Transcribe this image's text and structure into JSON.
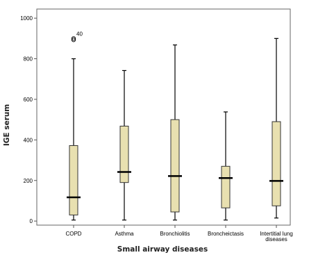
{
  "chart_data": {
    "type": "box",
    "xlabel": "Small airway diseases",
    "ylabel": "IGE serum",
    "ylim": [
      -20,
      1045
    ],
    "yticks": [
      0,
      200,
      400,
      600,
      800,
      1000
    ],
    "grid": false,
    "box_fill": "#e8e0b0",
    "categories": [
      {
        "label": [
          "COPD"
        ],
        "min": 5,
        "q1": 30,
        "median": 117,
        "q3": 372,
        "max": 800
      },
      {
        "label": [
          "Asthma"
        ],
        "min": 5,
        "q1": 190,
        "median": 242,
        "q3": 468,
        "max": 742
      },
      {
        "label": [
          "Bronchiolitis"
        ],
        "min": 5,
        "q1": 45,
        "median": 222,
        "q3": 500,
        "max": 868
      },
      {
        "label": [
          "Broncheictasis"
        ],
        "min": 5,
        "q1": 65,
        "median": 212,
        "q3": 270,
        "max": 538
      },
      {
        "label": [
          "Intertitial lung",
          "diseases"
        ],
        "min": 15,
        "q1": 75,
        "median": 198,
        "q3": 490,
        "max": 900
      }
    ],
    "outliers": [
      {
        "category": 0,
        "value": 900,
        "label": "40"
      },
      {
        "category": 0,
        "value": 893,
        "label": ""
      }
    ]
  }
}
